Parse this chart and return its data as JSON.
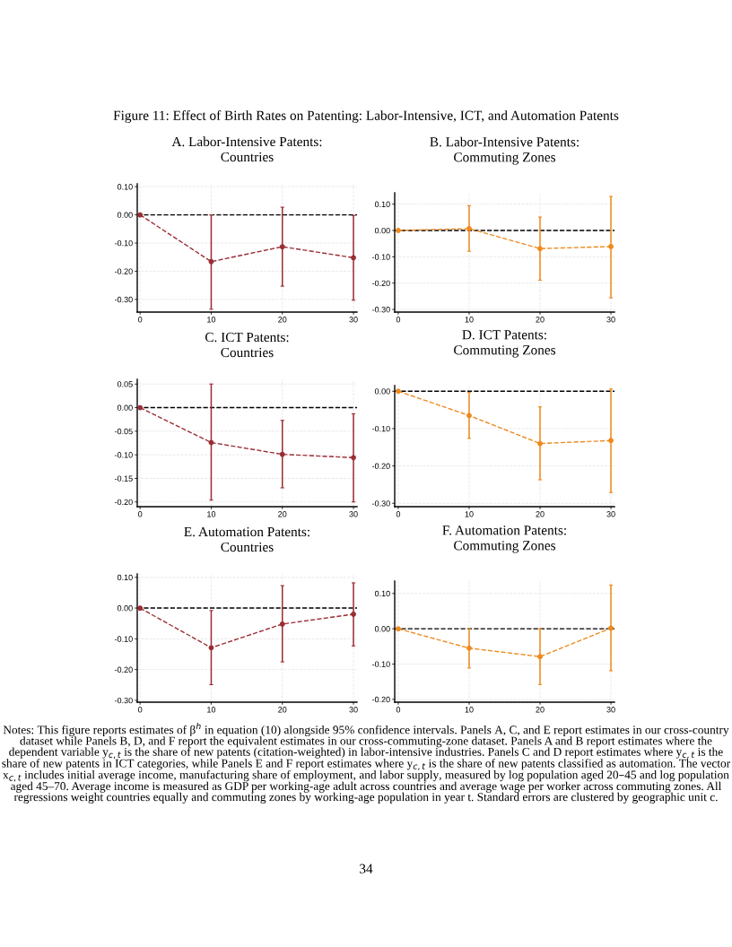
{
  "chart_data": [
    {
      "type": "line",
      "title": "A. Labor-Intensive Patents:\nCountries",
      "annotations": [
        "Figure 11: Effect of Birth Rates on Patenting: Labor-Intensive, ICT, and Automation Patents"
      ],
      "x": [
        0,
        10,
        20,
        30
      ],
      "xlim": [
        -0.4,
        30.5
      ],
      "ylim": [
        -0.345,
        0.11
      ],
      "xticks": [
        0,
        10,
        20,
        30
      ],
      "yticks": [
        {
          "value": 0.1,
          "label": "0.10"
        },
        {
          "value": 0,
          "label": "0.00"
        },
        {
          "value": -0.1,
          "label": "-0.10"
        },
        {
          "value": -0.2,
          "label": "-0.20"
        },
        {
          "value": -0.3,
          "label": "-0.30"
        }
      ],
      "grid": true,
      "marker": "circle",
      "line_style": "dashed",
      "ref_lines": [
        {
          "axis": "y",
          "value": 0,
          "color": "#000000",
          "line_style": "dashed"
        }
      ],
      "series": [
        {
          "color": "#9b2d35",
          "values": [
            0,
            -0.166,
            -0.113,
            -0.152
          ],
          "errors": [
            null,
            [
              -0.335,
              0.0
            ],
            [
              -0.253,
              0.027
            ],
            [
              -0.303,
              -0.002
            ]
          ]
        }
      ]
    },
    {
      "type": "line",
      "title": "B. Labor-Intensive Patents:\nCommuting Zones",
      "x": [
        0,
        10,
        20,
        30
      ],
      "xlim": [
        -0.5,
        30.5
      ],
      "ylim": [
        -0.31,
        0.143
      ],
      "xticks": [
        0,
        10,
        20,
        30
      ],
      "yticks": [
        {
          "value": 0.1,
          "label": "0.10"
        },
        {
          "value": 0,
          "label": "0.00"
        },
        {
          "value": -0.1,
          "label": "-0.10"
        },
        {
          "value": -0.2,
          "label": "-0.20"
        },
        {
          "value": -0.3,
          "label": "-0.30"
        }
      ],
      "grid": true,
      "marker": "circle",
      "line_style": "dashed",
      "ref_lines": [
        {
          "axis": "y",
          "value": 0,
          "color": "#000000",
          "line_style": "dashed"
        }
      ],
      "series": [
        {
          "color": "#ee8a1d",
          "values": [
            0,
            0.007,
            -0.069,
            -0.061
          ],
          "errors": [
            null,
            [
              -0.079,
              0.094
            ],
            [
              -0.189,
              0.051
            ],
            [
              -0.256,
              0.129
            ]
          ]
        }
      ]
    },
    {
      "type": "line",
      "title": "C. ICT Patents:\nCountries",
      "x": [
        0,
        10,
        20,
        30
      ],
      "xlim": [
        -0.4,
        30.5
      ],
      "ylim": [
        -0.21,
        0.06
      ],
      "xticks": [
        0,
        10,
        20,
        30
      ],
      "yticks": [
        {
          "value": 0.05,
          "label": "0.05"
        },
        {
          "value": 0,
          "label": "0.00"
        },
        {
          "value": -0.05,
          "label": "-0.05"
        },
        {
          "value": -0.1,
          "label": "-0.10"
        },
        {
          "value": -0.15,
          "label": "-0.15"
        },
        {
          "value": -0.2,
          "label": "-0.20"
        }
      ],
      "grid": true,
      "marker": "circle",
      "line_style": "dashed",
      "ref_lines": [
        {
          "axis": "y",
          "value": 0,
          "color": "#000000",
          "line_style": "dashed"
        }
      ],
      "series": [
        {
          "color": "#9b2d35",
          "values": [
            0,
            -0.074,
            -0.099,
            -0.106
          ],
          "errors": [
            null,
            [
              -0.196,
              0.05
            ],
            [
              -0.17,
              -0.027
            ],
            [
              -0.2,
              -0.013
            ]
          ]
        }
      ]
    },
    {
      "type": "line",
      "title": "D. ICT Patents:\nCommuting Zones",
      "x": [
        0,
        10,
        20,
        30
      ],
      "xlim": [
        -0.5,
        30.5
      ],
      "ylim": [
        -0.309,
        0.015
      ],
      "xticks": [
        0,
        10,
        20,
        30
      ],
      "yticks": [
        {
          "value": 0,
          "label": "0.00"
        },
        {
          "value": -0.1,
          "label": "-0.10"
        },
        {
          "value": -0.2,
          "label": "-0.20"
        },
        {
          "value": -0.3,
          "label": "-0.30"
        }
      ],
      "grid": true,
      "marker": "circle",
      "line_style": "dashed",
      "ref_lines": [
        {
          "axis": "y",
          "value": 0,
          "color": "#000000",
          "line_style": "dashed"
        }
      ],
      "series": [
        {
          "color": "#ee8a1d",
          "values": [
            0,
            -0.065,
            -0.14,
            -0.132
          ],
          "errors": [
            null,
            [
              -0.126,
              -0.003
            ],
            [
              -0.237,
              -0.042
            ],
            [
              -0.271,
              0.006
            ]
          ]
        }
      ]
    },
    {
      "type": "line",
      "title": "E. Automation Patents:\nCountries",
      "x": [
        0,
        10,
        20,
        30
      ],
      "xlim": [
        -0.4,
        30.5
      ],
      "ylim": [
        -0.306,
        0.111
      ],
      "xticks": [
        0,
        10,
        20,
        30
      ],
      "yticks": [
        {
          "value": 0.1,
          "label": "0.10"
        },
        {
          "value": 0,
          "label": "0.00"
        },
        {
          "value": -0.1,
          "label": "-0.10"
        },
        {
          "value": -0.2,
          "label": "-0.20"
        },
        {
          "value": -0.3,
          "label": "-0.30"
        }
      ],
      "grid": true,
      "marker": "circle",
      "line_style": "dashed",
      "ref_lines": [
        {
          "axis": "y",
          "value": 0,
          "color": "#000000",
          "line_style": "dashed"
        }
      ],
      "series": [
        {
          "color": "#9b2d35",
          "values": [
            0,
            -0.129,
            -0.052,
            -0.02
          ],
          "errors": [
            null,
            [
              -0.249,
              -0.008
            ],
            [
              -0.175,
              0.073
            ],
            [
              -0.123,
              0.082
            ]
          ]
        }
      ]
    },
    {
      "type": "line",
      "title": "F. Automation Patents:\nCommuting Zones",
      "annotations": [
        "Notes: This figure reports estimates of β$^{h}$ in equation (10) alongside 95% confidence intervals. Panels A, C, and E report estimates in our cross-country dataset while Panels B, D, and F report the equivalent estimates in our cross-commuting-zone dataset. Panels A and B report estimates where the dependent variable y$_{c,t}$ is the share of new patents (citation-weighted) in labor-intensive industries. Panels C and D report estimates where y$_{c,t}$ is the share of new patents in ICT categories, while Panels E and F report estimates where y$_{c,t}$ is the share of new patents classified as automation. The vector x$_{c,t}$ includes initial average income, manufacturing share of employment, and labor supply, measured by log population aged 20–45 and log population aged 45–70. Average income is measured as GDP per working-age adult across countries and average wage per worker across commuting zones. All regressions weight countries equally and commuting zones by working-age population in year t. Standard errors are clustered by geographic unit c.",
        "34"
      ],
      "x": [
        0,
        10,
        20,
        30
      ],
      "xlim": [
        -0.5,
        30.5
      ],
      "ylim": [
        -0.208,
        0.135
      ],
      "xticks": [
        0,
        10,
        20,
        30
      ],
      "yticks": [
        {
          "value": 0.1,
          "label": "0.10"
        },
        {
          "value": 0,
          "label": "0.00"
        },
        {
          "value": -0.1,
          "label": "-0.10"
        },
        {
          "value": -0.2,
          "label": "-0.20"
        }
      ],
      "grid": true,
      "marker": "circle",
      "line_style": "dashed",
      "ref_lines": [
        {
          "axis": "y",
          "value": 0,
          "color": "#000000",
          "line_style": "dashed"
        }
      ],
      "series": [
        {
          "color": "#ee8a1d",
          "values": [
            0,
            -0.055,
            -0.079,
            0.002
          ],
          "errors": [
            null,
            [
              -0.111,
              0.0
            ],
            [
              -0.158,
              0.0
            ],
            [
              -0.119,
              0.124
            ]
          ]
        }
      ]
    }
  ]
}
